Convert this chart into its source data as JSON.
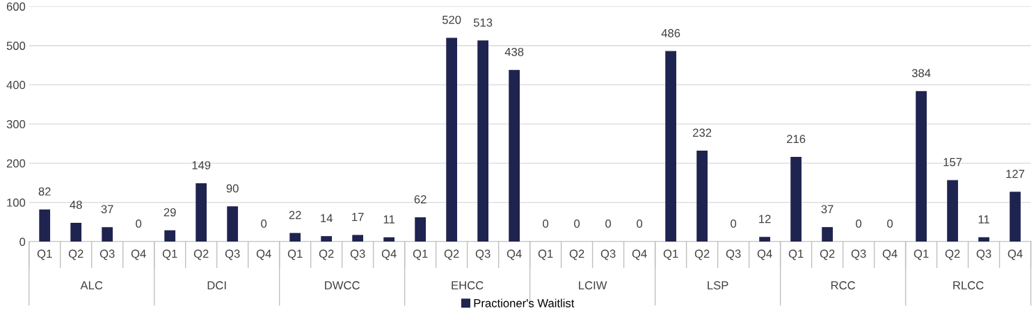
{
  "chart_data": {
    "type": "bar",
    "categories": [
      "Q1",
      "Q2",
      "Q3",
      "Q4",
      "Q1",
      "Q2",
      "Q3",
      "Q4",
      "Q1",
      "Q2",
      "Q3",
      "Q4",
      "Q1",
      "Q2",
      "Q3",
      "Q4",
      "Q1",
      "Q2",
      "Q3",
      "Q4",
      "Q1",
      "Q2",
      "Q3",
      "Q4",
      "Q1",
      "Q2",
      "Q3",
      "Q4",
      "Q1",
      "Q2",
      "Q3",
      "Q4"
    ],
    "series": [
      {
        "name": "Practioner's Waitlist",
        "color": "#1f2350",
        "values": [
          82,
          48,
          37,
          0,
          29,
          149,
          90,
          0,
          22,
          14,
          17,
          11,
          62,
          520,
          513,
          438,
          0,
          0,
          0,
          0,
          486,
          232,
          0,
          12,
          216,
          37,
          0,
          0,
          384,
          157,
          11,
          127
        ]
      }
    ],
    "annotations": [
      "ALC",
      "DCI",
      "DWCC",
      "EHCC",
      "LCIW",
      "LSP",
      "RCC",
      "RLCC"
    ],
    "ylim": [
      0,
      600
    ],
    "yticks": [
      0,
      100,
      200,
      300,
      400,
      500,
      600
    ],
    "grid": "y",
    "legend": "bottom",
    "data_labels": true
  }
}
